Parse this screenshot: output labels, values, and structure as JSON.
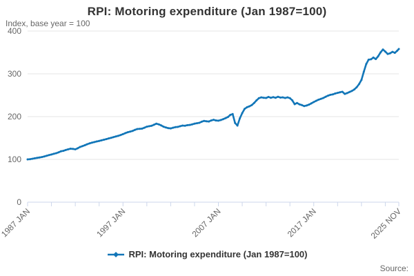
{
  "colors": {
    "series": "#1276b8",
    "grid": "#e6e6e6",
    "axis": "#ccd6eb",
    "text_muted": "#666666",
    "text_title": "#333333",
    "background": "#ffffff"
  },
  "footer": {
    "source_label": "Source:"
  },
  "chart_data": {
    "type": "line",
    "title": "RPI: Motoring expenditure (Jan 1987=100)",
    "subtitle": "Index, base year = 100",
    "xlabel": "",
    "ylabel": "Index, base year = 100",
    "grid": "horizontal",
    "legend_position": "bottom",
    "x_axis": {
      "range": [
        1987.0,
        2025.917
      ],
      "tick_step_years": 2.5,
      "labeled_ticks": [
        {
          "year": 1987.0,
          "label": "1987 JAN"
        },
        {
          "year": 1997.0,
          "label": "1997 JAN"
        },
        {
          "year": 2007.0,
          "label": "2007 JAN"
        },
        {
          "year": 2017.0,
          "label": "2017 JAN"
        },
        {
          "year": 2025.917,
          "label": "2025 NOV"
        }
      ]
    },
    "y_axis": {
      "range": [
        0,
        400
      ],
      "ticks": [
        0,
        100,
        200,
        300,
        400
      ]
    },
    "series": [
      {
        "name": "RPI: Motoring expenditure (Jan 1987=100)",
        "color": "#1276b8",
        "points": [
          [
            1987,
            100
          ],
          [
            1987.25,
            100.5
          ],
          [
            1987.5,
            101.5
          ],
          [
            1987.75,
            102.5
          ],
          [
            1988,
            103.5
          ],
          [
            1988.25,
            104.5
          ],
          [
            1988.5,
            105.5
          ],
          [
            1988.75,
            107
          ],
          [
            1989,
            108.5
          ],
          [
            1989.25,
            110
          ],
          [
            1989.5,
            111.5
          ],
          [
            1989.75,
            113
          ],
          [
            1990,
            114.5
          ],
          [
            1990.25,
            116.5
          ],
          [
            1990.5,
            119
          ],
          [
            1990.75,
            120
          ],
          [
            1991,
            122
          ],
          [
            1991.25,
            123.5
          ],
          [
            1991.5,
            125
          ],
          [
            1991.75,
            124.5
          ],
          [
            1992,
            123.5
          ],
          [
            1992.25,
            126
          ],
          [
            1992.5,
            129
          ],
          [
            1992.75,
            131
          ],
          [
            1993,
            133
          ],
          [
            1993.25,
            135.5
          ],
          [
            1993.5,
            137.5
          ],
          [
            1993.75,
            139
          ],
          [
            1994,
            140.5
          ],
          [
            1994.25,
            142
          ],
          [
            1994.5,
            143
          ],
          [
            1994.75,
            144.5
          ],
          [
            1995,
            146
          ],
          [
            1995.25,
            147.5
          ],
          [
            1995.5,
            149
          ],
          [
            1995.75,
            150.5
          ],
          [
            1996,
            152
          ],
          [
            1996.25,
            153.5
          ],
          [
            1996.5,
            155
          ],
          [
            1996.75,
            157
          ],
          [
            1997,
            159
          ],
          [
            1997.25,
            161.5
          ],
          [
            1997.5,
            163.5
          ],
          [
            1997.75,
            165
          ],
          [
            1998,
            166.5
          ],
          [
            1998.25,
            169
          ],
          [
            1998.5,
            171
          ],
          [
            1998.75,
            171.5
          ],
          [
            1999,
            172
          ],
          [
            1999.25,
            174
          ],
          [
            1999.5,
            176.5
          ],
          [
            1999.75,
            177.5
          ],
          [
            2000,
            178.5
          ],
          [
            2000.25,
            181
          ],
          [
            2000.5,
            183.5
          ],
          [
            2000.75,
            182
          ],
          [
            2001,
            179.5
          ],
          [
            2001.25,
            176.5
          ],
          [
            2001.5,
            174.5
          ],
          [
            2001.75,
            173
          ],
          [
            2002,
            172.5
          ],
          [
            2002.25,
            174
          ],
          [
            2002.5,
            175.5
          ],
          [
            2002.75,
            176
          ],
          [
            2003,
            177.5
          ],
          [
            2003.25,
            179
          ],
          [
            2003.5,
            178.5
          ],
          [
            2003.75,
            180
          ],
          [
            2004,
            180.5
          ],
          [
            2004.25,
            182
          ],
          [
            2004.5,
            183.5
          ],
          [
            2004.75,
            184.5
          ],
          [
            2005,
            185.5
          ],
          [
            2005.25,
            188
          ],
          [
            2005.5,
            190
          ],
          [
            2005.75,
            189
          ],
          [
            2006,
            188.5
          ],
          [
            2006.25,
            191
          ],
          [
            2006.5,
            192.5
          ],
          [
            2006.75,
            191
          ],
          [
            2007,
            190.5
          ],
          [
            2007.25,
            192
          ],
          [
            2007.5,
            194
          ],
          [
            2007.75,
            196.5
          ],
          [
            2008,
            199
          ],
          [
            2008.25,
            204
          ],
          [
            2008.5,
            206
          ],
          [
            2008.75,
            185
          ],
          [
            2009,
            179
          ],
          [
            2009.25,
            196
          ],
          [
            2009.5,
            208
          ],
          [
            2009.75,
            218
          ],
          [
            2010,
            222
          ],
          [
            2010.25,
            224
          ],
          [
            2010.5,
            227
          ],
          [
            2010.75,
            232
          ],
          [
            2011,
            238
          ],
          [
            2011.25,
            243
          ],
          [
            2011.5,
            245
          ],
          [
            2011.75,
            244
          ],
          [
            2012,
            243.5
          ],
          [
            2012.25,
            246
          ],
          [
            2012.5,
            244
          ],
          [
            2012.75,
            245.5
          ],
          [
            2013,
            244
          ],
          [
            2013.25,
            246.5
          ],
          [
            2013.5,
            244.5
          ],
          [
            2013.75,
            245
          ],
          [
            2014,
            243.5
          ],
          [
            2014.25,
            245
          ],
          [
            2014.5,
            243
          ],
          [
            2014.75,
            238
          ],
          [
            2015,
            229
          ],
          [
            2015.25,
            232
          ],
          [
            2015.5,
            228.5
          ],
          [
            2015.75,
            227
          ],
          [
            2016,
            224.5
          ],
          [
            2016.25,
            226
          ],
          [
            2016.5,
            228
          ],
          [
            2016.75,
            231
          ],
          [
            2017,
            234
          ],
          [
            2017.25,
            237
          ],
          [
            2017.5,
            239.5
          ],
          [
            2017.75,
            241.5
          ],
          [
            2018,
            243.5
          ],
          [
            2018.25,
            246.5
          ],
          [
            2018.5,
            249
          ],
          [
            2018.75,
            251
          ],
          [
            2019,
            252
          ],
          [
            2019.25,
            254
          ],
          [
            2019.5,
            255.5
          ],
          [
            2019.75,
            257
          ],
          [
            2020,
            258
          ],
          [
            2020.25,
            253
          ],
          [
            2020.5,
            255
          ],
          [
            2020.75,
            257.5
          ],
          [
            2021,
            260
          ],
          [
            2021.25,
            263.5
          ],
          [
            2021.5,
            268.5
          ],
          [
            2021.75,
            276
          ],
          [
            2022,
            286
          ],
          [
            2022.25,
            305
          ],
          [
            2022.5,
            323
          ],
          [
            2022.75,
            333
          ],
          [
            2023,
            334
          ],
          [
            2023.25,
            338
          ],
          [
            2023.5,
            334.5
          ],
          [
            2023.75,
            341
          ],
          [
            2024,
            350
          ],
          [
            2024.25,
            357
          ],
          [
            2024.5,
            352
          ],
          [
            2024.75,
            346.5
          ],
          [
            2025,
            348
          ],
          [
            2025.25,
            351.5
          ],
          [
            2025.5,
            349
          ],
          [
            2025.75,
            354
          ],
          [
            2025.917,
            358
          ]
        ]
      }
    ]
  }
}
